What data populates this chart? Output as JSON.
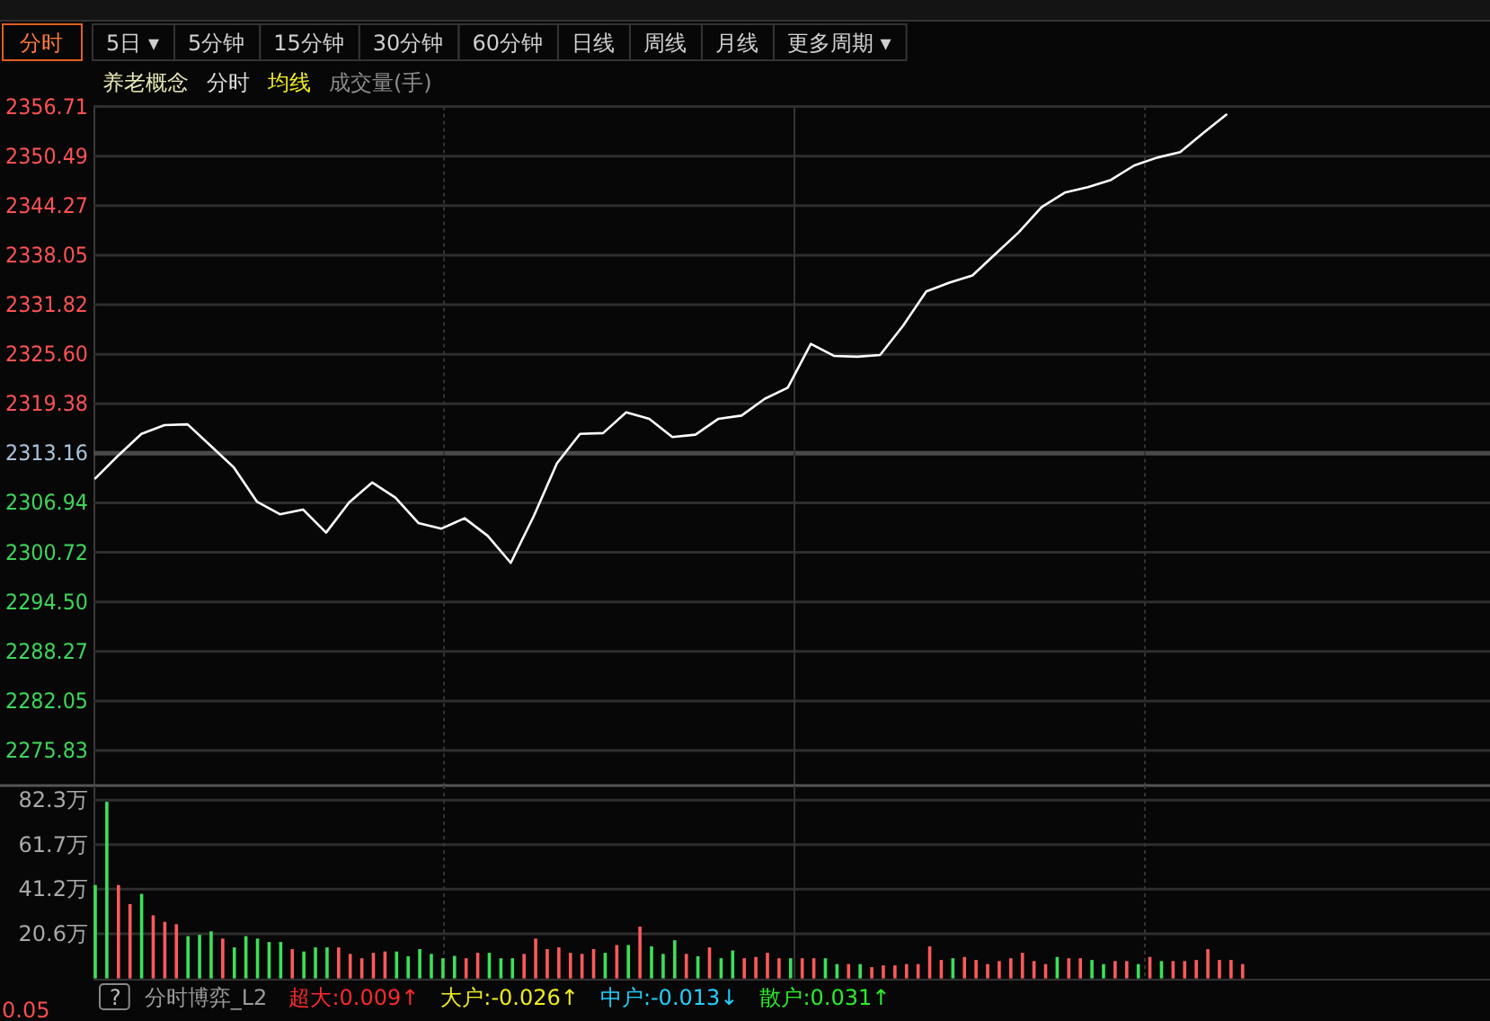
{
  "chart_data": [
    {
      "type": "other",
      "annotations": [
        "分时",
        "5日 ▾",
        "5分钟",
        "15分钟",
        "30分钟",
        "60分钟",
        "日线",
        "周线",
        "月线",
        "更多周期 ▾"
      ]
    },
    {
      "type": "line",
      "title": "养老概念",
      "annotations": [
        "均线",
        "成交量(手)"
      ],
      "legend": "top left",
      "grid": true,
      "tick_labels": "y",
      "categories": [
        null,
        null,
        null,
        null,
        null,
        null,
        null,
        null,
        null,
        null,
        null,
        null,
        null,
        null,
        null,
        null,
        null,
        null,
        null,
        null,
        null,
        null,
        null,
        null,
        null,
        null,
        null,
        null,
        null,
        null,
        null,
        null,
        null,
        null,
        null,
        null,
        null,
        null,
        null,
        null,
        null,
        null,
        null,
        null,
        null,
        null,
        null,
        null,
        null,
        null,
        null,
        null,
        null,
        null,
        null,
        null,
        null,
        null,
        null,
        null,
        null
      ],
      "ylim": [
        2271.5,
        2356.71
      ],
      "yticks": [
        2356.71,
        2350.49,
        2344.27,
        2338.05,
        2331.82,
        {
          "value": 2325.6,
          "label": "2325.60"
        },
        2319.38,
        2313.16,
        2306.94,
        2300.72,
        {
          "value": 2294.5,
          "label": "2294.50"
        },
        2288.27,
        2282.05,
        2275.83
      ],
      "ref_lines": [
        {
          "axis": "y",
          "value": 2313.16
        }
      ],
      "series": [
        {
          "name": "分时",
          "color": "#ffffff",
          "values": [
            2310.0,
            2312.9,
            2315.6,
            2316.7,
            2316.8,
            2314.1,
            2311.4,
            2307.1,
            2305.5,
            2306.1,
            2303.2,
            2307.0,
            2309.5,
            2307.6,
            2304.4,
            2303.7,
            2305.0,
            2302.8,
            2299.4,
            2305.3,
            2311.9,
            2315.6,
            2315.7,
            2318.3,
            2317.5,
            2315.2,
            2315.5,
            2317.5,
            2317.9,
            2320.0,
            2321.4,
            2326.9,
            2325.4,
            2325.3,
            2325.5,
            2329.2,
            2333.5,
            2334.6,
            2335.5,
            2338.2,
            2340.9,
            2344.1,
            2345.9,
            2346.6,
            2347.5,
            2349.3,
            2350.3,
            2351.0,
            2353.4,
            2355.7,
            null,
            null,
            null,
            null,
            null,
            null,
            null,
            null,
            null,
            null,
            null
          ]
        }
      ]
    },
    {
      "type": "bar",
      "grid": true,
      "tick_labels": "y",
      "categories": [
        null,
        null,
        null,
        null,
        null,
        null,
        null,
        null,
        null,
        null,
        null,
        null,
        null,
        null,
        null,
        null,
        null,
        null,
        null,
        null,
        null,
        null,
        null,
        null,
        null,
        null,
        null,
        null,
        null,
        null,
        null,
        null,
        null,
        null,
        null,
        null,
        null,
        null,
        null,
        null,
        null,
        null,
        null,
        null,
        null,
        null,
        null,
        null,
        null,
        null,
        null,
        null,
        null,
        null,
        null,
        null,
        null,
        null,
        null,
        null,
        null,
        null,
        null,
        null,
        null,
        null,
        null,
        null,
        null,
        null,
        null,
        null,
        null,
        null,
        null,
        null,
        null,
        null,
        null,
        null,
        null,
        null,
        null,
        null,
        null,
        null,
        null,
        null,
        null,
        null,
        null,
        null,
        null,
        null,
        null,
        null,
        null,
        null,
        null,
        null,
        null,
        null,
        null,
        null,
        null,
        null,
        null,
        null,
        null,
        null,
        null,
        null,
        null,
        null,
        null,
        null,
        null,
        null,
        null,
        null,
        null
      ],
      "ylim": [
        0,
        89
      ],
      "yticks": [
        {
          "value": 82.3,
          "label": "82.3万"
        },
        {
          "value": 61.7,
          "label": "61.7万"
        },
        {
          "value": 41.2,
          "label": "41.2万"
        },
        {
          "value": 20.6,
          "label": "20.6万"
        }
      ],
      "values": [
        43.1,
        81.5,
        43.1,
        34.3,
        39.0,
        29.1,
        26.1,
        25.0,
        19.5,
        20.1,
        21.7,
        18.4,
        14.3,
        19.5,
        18.4,
        16.8,
        16.8,
        13.5,
        12.4,
        14.3,
        14.3,
        14.3,
        11.3,
        9.3,
        11.8,
        12.4,
        12.4,
        10.2,
        13.5,
        11.3,
        9.3,
        10.4,
        9.3,
        11.8,
        11.8,
        9.3,
        9.3,
        11.3,
        18.4,
        13.5,
        14.3,
        11.8,
        11.3,
        13.5,
        11.8,
        15.4,
        15.4,
        23.9,
        14.8,
        11.3,
        17.6,
        11.3,
        10.2,
        14.3,
        9.3,
        12.9,
        9.3,
        9.9,
        11.8,
        9.3,
        9.3,
        9.3,
        9.3,
        9.3,
        6.6,
        6.6,
        6.6,
        5.2,
        6.0,
        6.0,
        6.6,
        6.6,
        14.8,
        8.5,
        9.3,
        9.9,
        8.5,
        6.6,
        8.0,
        9.3,
        11.8,
        8.0,
        6.6,
        9.9,
        9.3,
        9.3,
        8.5,
        6.6,
        8.0,
        8.0,
        6.6,
        9.9,
        8.0,
        8.0,
        8.0,
        8.5,
        13.5,
        8.5,
        8.5,
        6.6,
        null,
        null,
        null,
        null,
        null,
        null,
        null,
        null,
        null,
        null,
        null,
        null,
        null,
        null,
        null,
        null,
        null,
        null,
        null,
        null,
        null
      ],
      "colors": [
        "#3ce05a",
        "#3ce05a",
        "#ff5a5a",
        "#ff5a5a",
        "#3ce05a",
        "#ff5a5a",
        "#ff5a5a",
        "#ff5a5a",
        "#3ce05a",
        "#3ce05a",
        "#3ce05a",
        "#ff5a5a",
        "#3ce05a",
        "#3ce05a",
        "#3ce05a",
        "#3ce05a",
        "#3ce05a",
        "#ff5a5a",
        "#3ce05a",
        "#3ce05a",
        "#3ce05a",
        "#ff5a5a",
        "#ff5a5a",
        "#ff5a5a",
        "#ff5a5a",
        "#ff5a5a",
        "#3ce05a",
        "#3ce05a",
        "#3ce05a",
        "#3ce05a",
        "#3ce05a",
        "#3ce05a",
        "#ff5a5a",
        "#ff5a5a",
        "#3ce05a",
        "#3ce05a",
        "#3ce05a",
        "#ff5a5a",
        "#ff5a5a",
        "#ff5a5a",
        "#ff5a5a",
        "#ff5a5a",
        "#ff5a5a",
        "#ff5a5a",
        "#3ce05a",
        "#ff5a5a",
        "#3ce05a",
        "#ff5a5a",
        "#3ce05a",
        "#3ce05a",
        "#3ce05a",
        "#ff5a5a",
        "#3ce05a",
        "#ff5a5a",
        "#3ce05a",
        "#3ce05a",
        "#ff5a5a",
        "#ff5a5a",
        "#ff5a5a",
        "#ff5a5a",
        "#3ce05a",
        "#ff5a5a",
        "#ff5a5a",
        "#3ce05a",
        "#3ce05a",
        "#ff5a5a",
        "#3ce05a",
        "#ff5a5a",
        "#ff5a5a",
        "#ff5a5a",
        "#ff5a5a",
        "#ff5a5a",
        "#ff5a5a",
        "#ff5a5a",
        "#3ce05a",
        "#ff5a5a",
        "#ff5a5a",
        "#ff5a5a",
        "#ff5a5a",
        "#ff5a5a",
        "#ff5a5a",
        "#ff5a5a",
        "#ff5a5a",
        "#3ce05a",
        "#ff5a5a",
        "#ff5a5a",
        "#3ce05a",
        "#3ce05a",
        "#ff5a5a",
        "#ff5a5a",
        "#3ce05a",
        "#ff5a5a",
        "#3ce05a",
        "#ff5a5a",
        "#ff5a5a",
        "#ff5a5a",
        "#ff5a5a",
        "#ff5a5a",
        "#ff5a5a",
        "#ff5a5a",
        null,
        null,
        null,
        null,
        null,
        null,
        null,
        null,
        null,
        null,
        null,
        null,
        null,
        null,
        null,
        null,
        null,
        null,
        null,
        null,
        null
      ]
    },
    {
      "type": "other",
      "annotations": [
        "?",
        "分时博弈_L2",
        "超大:0.009↑",
        "大户:-0.026↑",
        "中户:-0.013↓",
        "散户:0.031↑",
        "0.05"
      ]
    }
  ]
}
